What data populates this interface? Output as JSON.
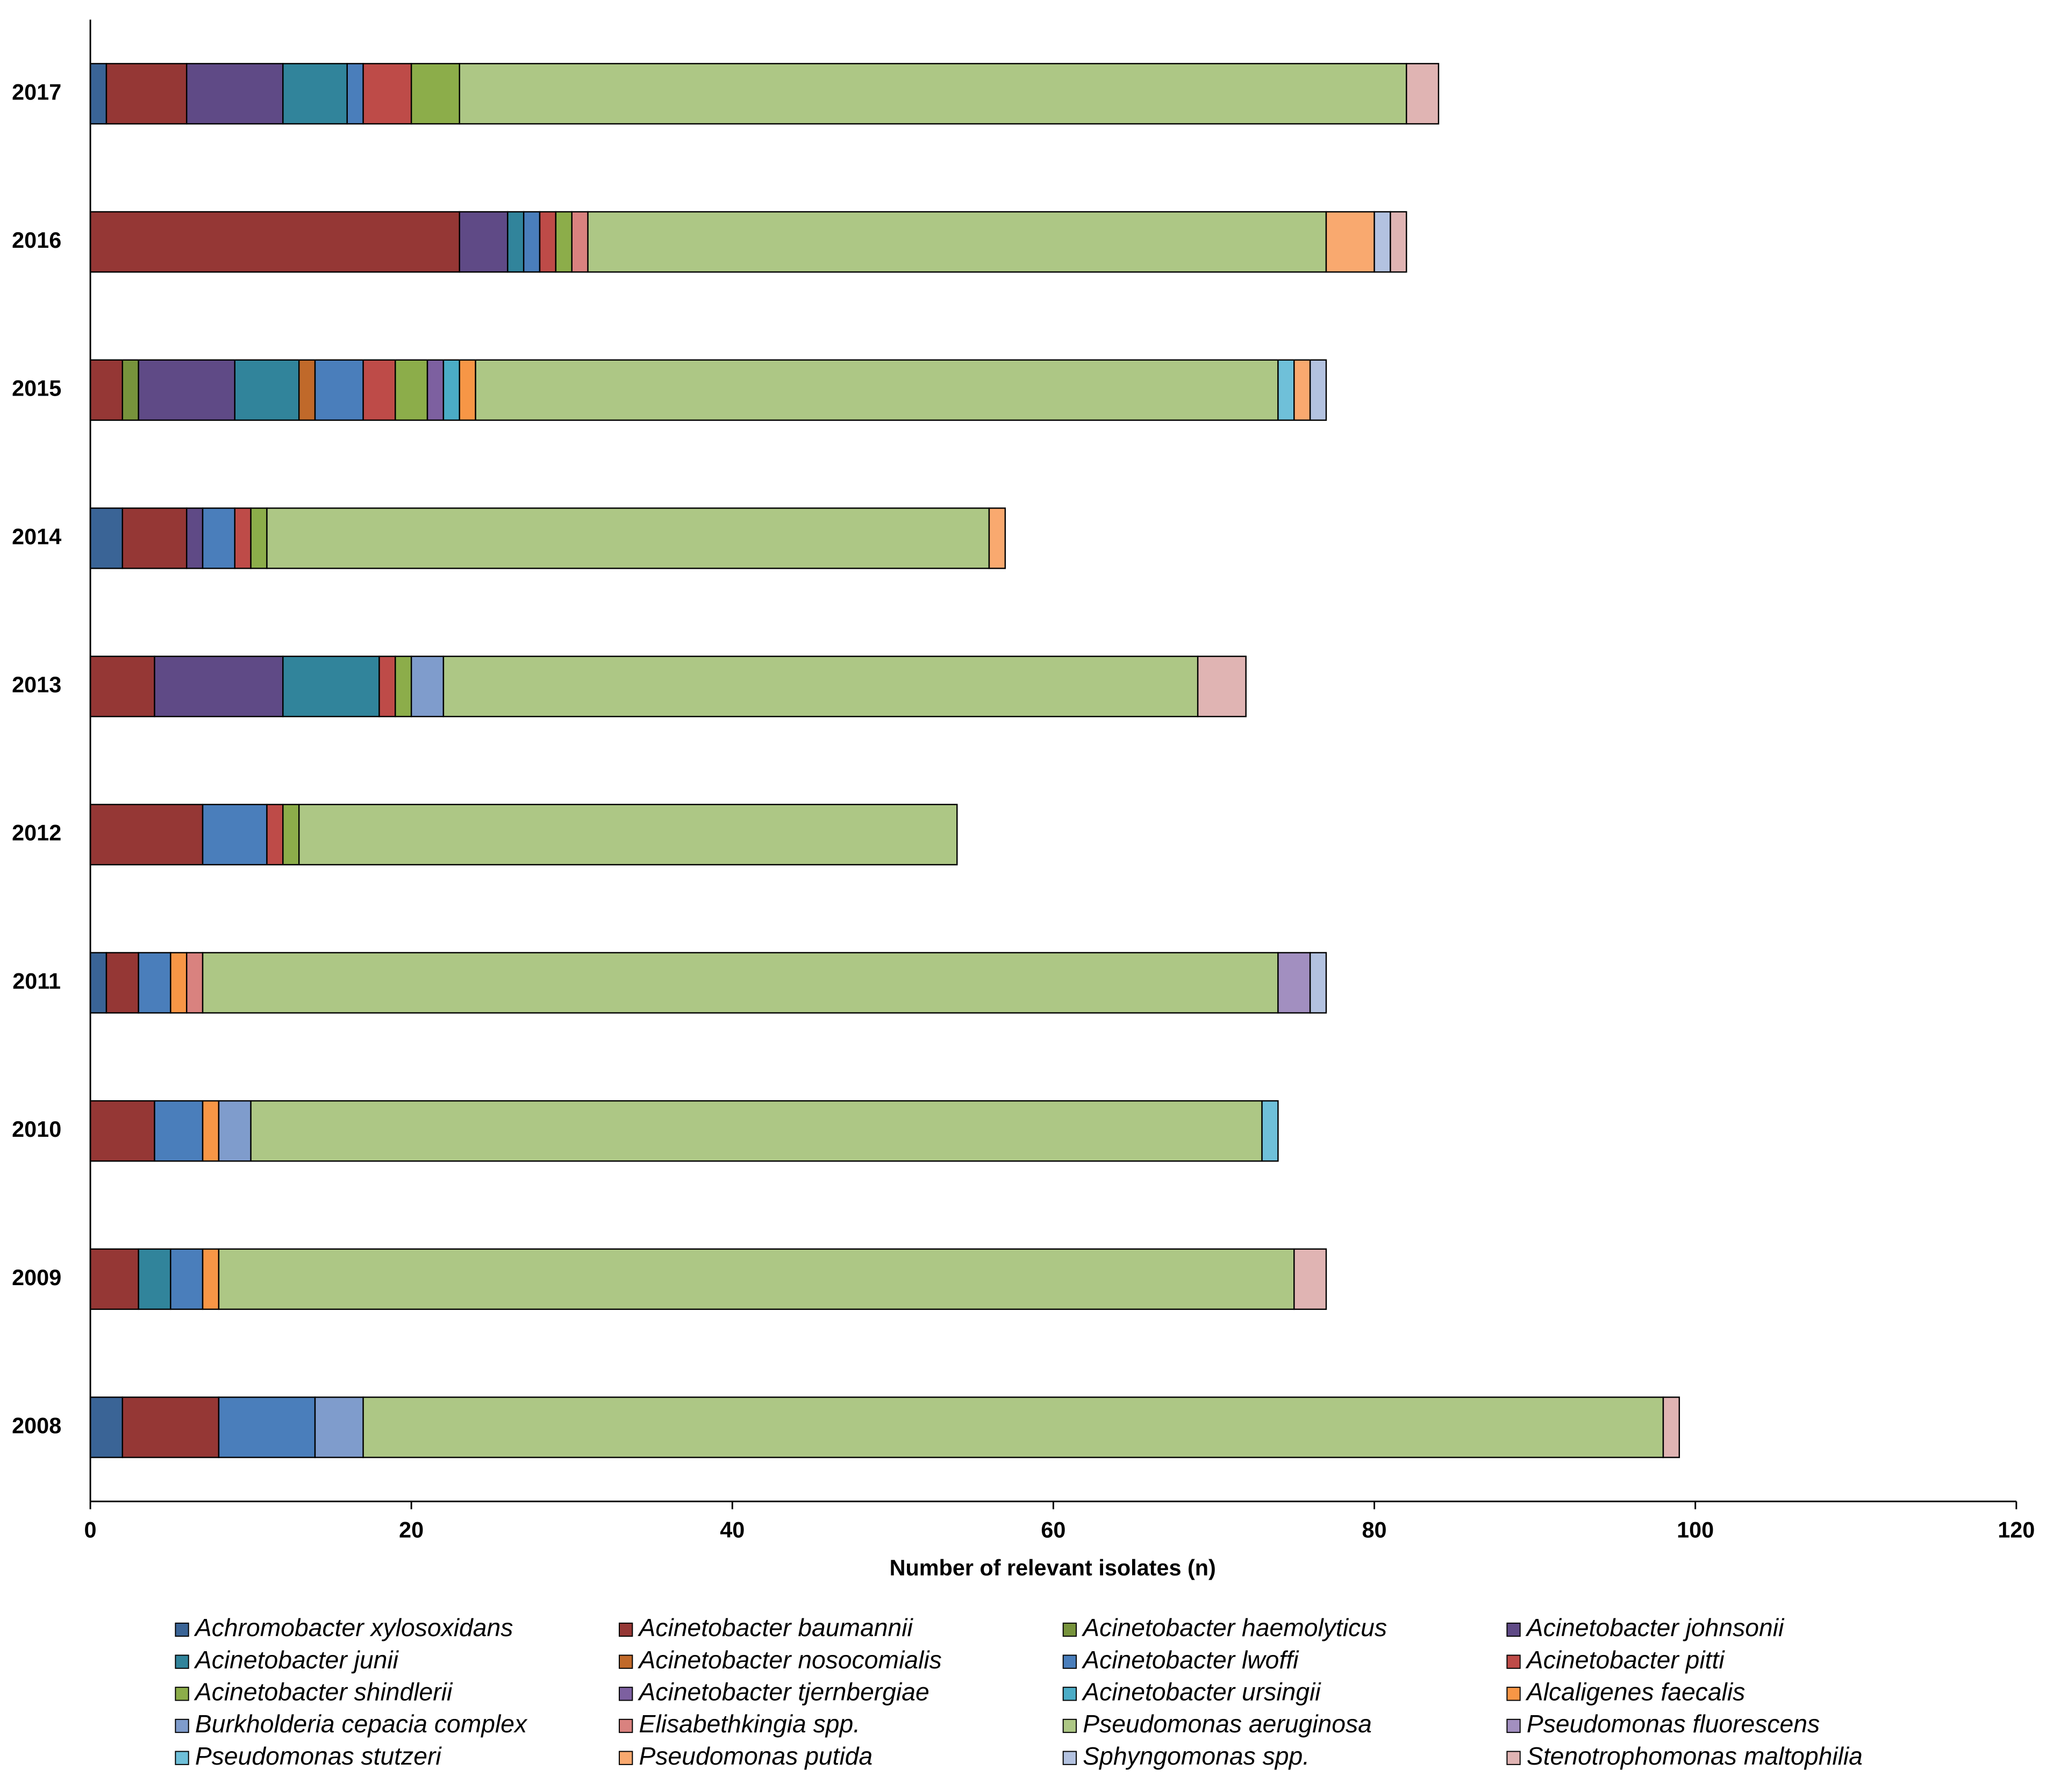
{
  "chart_data": {
    "type": "stacked-bar-horizontal",
    "x_label": "Number of relevant isolates (n)",
    "categories": [
      "2008",
      "2009",
      "2010",
      "2011",
      "2012",
      "2013",
      "2014",
      "2015",
      "2016",
      "2017"
    ],
    "xlim": [
      0,
      120
    ],
    "xticks": [
      0,
      20,
      40,
      60,
      80,
      100,
      120
    ],
    "grid": false,
    "legend": "bottom",
    "series": [
      {
        "name": "Achromobacter xylosoxidans",
        "color": "#3a6496",
        "values": [
          2,
          0,
          0,
          1,
          0,
          0,
          2,
          0,
          0,
          1
        ]
      },
      {
        "name": "Acinetobacter baumannii",
        "color": "#953735",
        "values": [
          6,
          3,
          4,
          2,
          7,
          4,
          4,
          2,
          23,
          5
        ]
      },
      {
        "name": "Acinetobacter haemolyticus",
        "color": "#77933c",
        "values": [
          0,
          0,
          0,
          0,
          0,
          0,
          0,
          1,
          0,
          0
        ]
      },
      {
        "name": "Acinetobacter johnsonii",
        "color": "#5f4a86",
        "values": [
          0,
          0,
          0,
          0,
          0,
          8,
          1,
          6,
          3,
          6
        ]
      },
      {
        "name": "Acinetobacter junii",
        "color": "#31849b",
        "values": [
          0,
          2,
          0,
          0,
          0,
          6,
          0,
          4,
          1,
          4
        ]
      },
      {
        "name": "Acinetobacter nosocomialis",
        "color": "#c0692a",
        "values": [
          0,
          0,
          0,
          0,
          0,
          0,
          0,
          1,
          0,
          0
        ]
      },
      {
        "name": "Acinetobacter lwoffi",
        "color": "#4a7ebb",
        "values": [
          6,
          2,
          3,
          2,
          4,
          0,
          2,
          3,
          1,
          1
        ]
      },
      {
        "name": "Acinetobacter pitti",
        "color": "#be4b48",
        "values": [
          0,
          0,
          0,
          0,
          1,
          1,
          1,
          2,
          1,
          3
        ]
      },
      {
        "name": "Acinetobacter shindlerii",
        "color": "#8cad4a",
        "values": [
          0,
          0,
          0,
          0,
          1,
          1,
          1,
          2,
          1,
          3
        ]
      },
      {
        "name": "Acinetobacter tjernbergiae",
        "color": "#7d60a0",
        "values": [
          0,
          0,
          0,
          0,
          0,
          0,
          0,
          1,
          0,
          0
        ]
      },
      {
        "name": "Acinetobacter ursingii",
        "color": "#4bacc6",
        "values": [
          0,
          0,
          0,
          0,
          0,
          0,
          0,
          1,
          0,
          0
        ]
      },
      {
        "name": "Alcaligenes faecalis",
        "color": "#f79646",
        "values": [
          0,
          1,
          1,
          1,
          0,
          0,
          0,
          1,
          0,
          0
        ]
      },
      {
        "name": "Burkholderia cepacia complex",
        "color": "#7f9ccc",
        "values": [
          3,
          0,
          2,
          0,
          0,
          2,
          0,
          0,
          0,
          0
        ]
      },
      {
        "name": "Elisabethkingia spp.",
        "color": "#d9827f",
        "values": [
          0,
          0,
          0,
          1,
          0,
          0,
          0,
          0,
          1,
          0
        ]
      },
      {
        "name": "Pseudomonas aeruginosa",
        "color": "#adc785",
        "values": [
          81,
          67,
          63,
          67,
          41,
          47,
          45,
          50,
          46,
          59
        ]
      },
      {
        "name": "Pseudomonas fluorescens",
        "color": "#a28fc0",
        "values": [
          0,
          0,
          0,
          2,
          0,
          0,
          0,
          0,
          0,
          0
        ]
      },
      {
        "name": "Pseudomonas stutzeri",
        "color": "#6fc0d9",
        "values": [
          0,
          0,
          1,
          0,
          0,
          0,
          0,
          1,
          0,
          0
        ]
      },
      {
        "name": "Pseudomonas putida",
        "color": "#f9a96f",
        "values": [
          0,
          0,
          0,
          0,
          0,
          0,
          1,
          1,
          3,
          0
        ]
      },
      {
        "name": "Sphyngomonas spp.",
        "color": "#b3c2e0",
        "values": [
          0,
          0,
          0,
          1,
          0,
          0,
          0,
          1,
          1,
          0
        ]
      },
      {
        "name": "Stenotrophomonas maltophilia",
        "color": "#e0b4b3",
        "values": [
          1,
          2,
          0,
          0,
          0,
          3,
          0,
          0,
          1,
          2
        ]
      }
    ]
  }
}
